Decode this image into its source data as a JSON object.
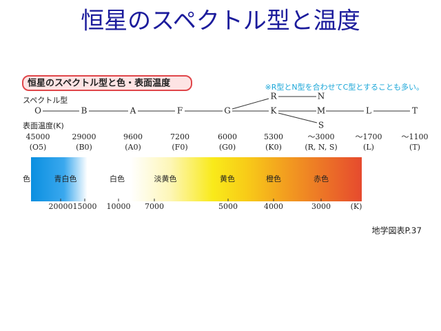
{
  "title": "恒星のスペクトル型と温度",
  "figure": {
    "label": "恒星のスペクトル型と色・表面温度",
    "note": "※R型とN型を合わせてC型とすることも多い。",
    "spectral_label": "スペクトル型",
    "main_sequence": [
      "O",
      "B",
      "A",
      "F",
      "G",
      "K",
      "M",
      "L",
      "T"
    ],
    "upper_branch": [
      "R",
      "N"
    ],
    "lower_branch": [
      "S"
    ],
    "temp_label": "表面温度(K)",
    "temperatures": [
      "45000",
      "29000",
      "9600",
      "7200",
      "6000",
      "5300",
      "～3000",
      "～1700",
      "～1100"
    ],
    "subclasses": [
      "(O5)",
      "(B0)",
      "(A0)",
      "(F0)",
      "(G0)",
      "(K0)",
      "(R, N, S)",
      "(L)",
      "(T)"
    ],
    "color_label": "色",
    "color_names": [
      "青白色",
      "白色",
      "淡黄色",
      "黄色",
      "橙色",
      "赤色"
    ],
    "scale": [
      "20000",
      "15000",
      "10000",
      "7000",
      "5000",
      "4000",
      "3000"
    ],
    "scale_unit": "(K)"
  },
  "source": "地学図表P.37"
}
